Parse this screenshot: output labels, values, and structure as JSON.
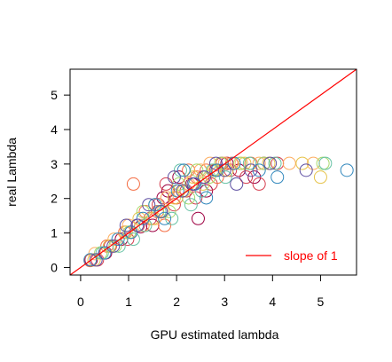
{
  "chart_data": {
    "type": "scatter",
    "title": "",
    "xlabel": "GPU estimated lambda",
    "ylabel": "real Lambda",
    "xlim": [
      -0.22,
      5.75
    ],
    "ylim": [
      -0.22,
      5.75
    ],
    "xticks": [
      "0",
      "1",
      "2",
      "3",
      "4",
      "5"
    ],
    "yticks": [
      "0",
      "1",
      "2",
      "3",
      "4",
      "5"
    ],
    "grid": false,
    "marker": "open-circle",
    "reference_line": {
      "label": "slope of 1",
      "slope": 1,
      "intercept": 0,
      "color": "#ff0000"
    },
    "legend": {
      "position": "bottom-right",
      "entries": [
        {
          "label": "slope of 1",
          "color": "#ff0000",
          "style": "line"
        }
      ]
    },
    "series": [
      {
        "color": "#9e0142",
        "points": [
          [
            0.22,
            0.22
          ],
          [
            0.52,
            0.42
          ],
          [
            0.85,
            0.82
          ],
          [
            1.05,
            1.02
          ],
          [
            1.25,
            1.18
          ],
          [
            1.5,
            1.22
          ],
          [
            1.68,
            1.62
          ],
          [
            1.82,
            2.22
          ],
          [
            1.72,
            2.02
          ],
          [
            2.05,
            2.62
          ],
          [
            2.32,
            2.42
          ],
          [
            2.45,
            1.42
          ],
          [
            2.62,
            2.22
          ],
          [
            2.82,
            2.82
          ],
          [
            3.05,
            3.02
          ],
          [
            3.3,
            2.82
          ],
          [
            3.62,
            2.62
          ],
          [
            3.82,
            3.02
          ]
        ]
      },
      {
        "color": "#d53e4f",
        "points": [
          [
            0.35,
            0.22
          ],
          [
            0.62,
            0.62
          ],
          [
            0.98,
            0.82
          ],
          [
            1.2,
            1.22
          ],
          [
            1.45,
            1.42
          ],
          [
            1.62,
            1.82
          ],
          [
            1.78,
            2.42
          ],
          [
            1.95,
            1.82
          ],
          [
            2.2,
            2.22
          ],
          [
            2.4,
            2.02
          ],
          [
            2.55,
            2.62
          ],
          [
            2.72,
            2.42
          ],
          [
            2.95,
            3.02
          ],
          [
            3.12,
            2.82
          ],
          [
            3.45,
            2.62
          ],
          [
            4.1,
            3.02
          ],
          [
            3.72,
            2.42
          ]
        ]
      },
      {
        "color": "#f46d43",
        "points": [
          [
            0.2,
            0.2
          ],
          [
            0.55,
            0.62
          ],
          [
            0.92,
            1.02
          ],
          [
            1.1,
            2.42
          ],
          [
            1.35,
            1.62
          ],
          [
            1.6,
            1.62
          ],
          [
            1.75,
            1.22
          ],
          [
            2.0,
            2.02
          ],
          [
            2.25,
            2.82
          ],
          [
            2.42,
            2.62
          ],
          [
            2.62,
            2.82
          ],
          [
            2.85,
            2.62
          ],
          [
            3.15,
            3.02
          ],
          [
            3.55,
            3.02
          ]
        ]
      },
      {
        "color": "#fdae61",
        "points": [
          [
            0.3,
            0.4
          ],
          [
            0.7,
            0.82
          ],
          [
            1.0,
            1.22
          ],
          [
            1.3,
            1.22
          ],
          [
            1.55,
            1.42
          ],
          [
            1.8,
            2.02
          ],
          [
            2.05,
            2.22
          ],
          [
            2.25,
            2.42
          ],
          [
            2.5,
            2.82
          ],
          [
            2.7,
            3.02
          ],
          [
            3.0,
            3.02
          ],
          [
            3.35,
            3.02
          ],
          [
            3.72,
            3.02
          ],
          [
            4.35,
            3.02
          ],
          [
            4.85,
            3.02
          ]
        ]
      },
      {
        "color": "#e6c34a",
        "points": [
          [
            0.28,
            0.22
          ],
          [
            0.6,
            0.62
          ],
          [
            0.95,
            1.02
          ],
          [
            1.22,
            1.42
          ],
          [
            1.5,
            1.42
          ],
          [
            1.72,
            1.62
          ],
          [
            1.95,
            2.02
          ],
          [
            2.15,
            2.22
          ],
          [
            2.35,
            2.62
          ],
          [
            2.55,
            2.42
          ],
          [
            2.78,
            2.82
          ],
          [
            3.05,
            2.82
          ],
          [
            3.42,
            3.02
          ],
          [
            3.92,
            3.02
          ],
          [
            4.62,
            3.02
          ],
          [
            5.0,
            2.62
          ]
        ]
      },
      {
        "color": "#a6d96a",
        "points": [
          [
            0.42,
            0.42
          ],
          [
            0.72,
            0.62
          ],
          [
            1.02,
            1.02
          ],
          [
            1.3,
            1.62
          ],
          [
            1.55,
            1.82
          ],
          [
            1.85,
            1.62
          ],
          [
            2.05,
            2.42
          ],
          [
            2.25,
            2.02
          ],
          [
            2.42,
            2.82
          ],
          [
            2.68,
            2.62
          ],
          [
            2.92,
            3.02
          ],
          [
            3.32,
            3.02
          ],
          [
            3.82,
            3.02
          ],
          [
            5.05,
            3.02
          ]
        ]
      },
      {
        "color": "#66c2a5",
        "points": [
          [
            0.45,
            0.42
          ],
          [
            0.8,
            0.62
          ],
          [
            1.1,
            0.82
          ],
          [
            1.35,
            1.22
          ],
          [
            1.65,
            1.62
          ],
          [
            1.9,
            1.42
          ],
          [
            2.08,
            2.82
          ],
          [
            2.3,
            1.82
          ],
          [
            2.52,
            2.22
          ],
          [
            2.75,
            2.82
          ],
          [
            3.02,
            2.62
          ],
          [
            3.52,
            3.02
          ],
          [
            4.05,
            3.02
          ],
          [
            5.1,
            3.02
          ]
        ]
      },
      {
        "color": "#3288bd",
        "points": [
          [
            0.2,
            0.22
          ],
          [
            0.5,
            0.42
          ],
          [
            0.78,
            0.82
          ],
          [
            1.05,
            1.02
          ],
          [
            1.3,
            1.42
          ],
          [
            1.55,
            1.82
          ],
          [
            1.75,
            1.42
          ],
          [
            2.02,
            2.22
          ],
          [
            2.15,
            2.82
          ],
          [
            2.38,
            2.42
          ],
          [
            2.62,
            2.02
          ],
          [
            2.85,
            2.82
          ],
          [
            3.2,
            3.02
          ],
          [
            3.72,
            2.82
          ],
          [
            4.1,
            2.62
          ],
          [
            5.55,
            2.82
          ]
        ]
      },
      {
        "color": "#5e4fa2",
        "points": [
          [
            0.32,
            0.22
          ],
          [
            0.68,
            0.62
          ],
          [
            0.95,
            1.22
          ],
          [
            1.18,
            1.22
          ],
          [
            1.42,
            1.82
          ],
          [
            1.68,
            1.62
          ],
          [
            1.95,
            2.62
          ],
          [
            2.12,
            2.22
          ],
          [
            2.35,
            2.42
          ],
          [
            2.58,
            2.62
          ],
          [
            2.82,
            3.02
          ],
          [
            3.0,
            2.82
          ],
          [
            3.25,
            2.42
          ],
          [
            3.55,
            2.82
          ],
          [
            3.95,
            3.02
          ],
          [
            4.7,
            2.82
          ]
        ]
      }
    ]
  }
}
